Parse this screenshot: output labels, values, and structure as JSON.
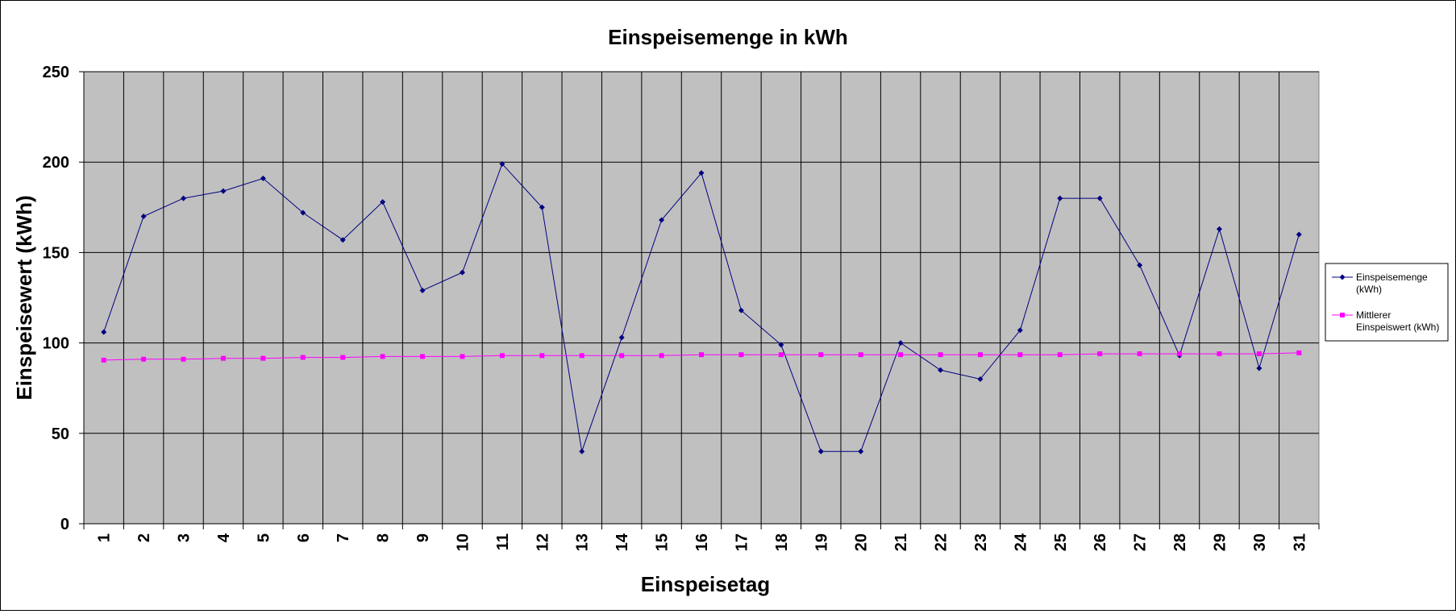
{
  "chart_data": {
    "type": "line",
    "title": "Einspeisemenge in kWh",
    "xlabel": "Einspeisetag",
    "ylabel": "Einspeisewert  (kWh)",
    "ylim": [
      0,
      250
    ],
    "yticks": [
      0,
      50,
      100,
      150,
      200,
      250
    ],
    "grid": true,
    "legend_position": "right",
    "plot_background": "#c0c0c0",
    "categories": [
      "1",
      "2",
      "3",
      "4",
      "5",
      "6",
      "7",
      "8",
      "9",
      "10",
      "11",
      "12",
      "13",
      "14",
      "15",
      "16",
      "17",
      "18",
      "19",
      "20",
      "21",
      "22",
      "23",
      "24",
      "25",
      "26",
      "27",
      "28",
      "29",
      "30",
      "31"
    ],
    "series": [
      {
        "name": "Einspeisemenge (kWh)",
        "legend_lines": [
          "Einspeisemenge",
          "(kWh)"
        ],
        "color": "#000080",
        "marker": "diamond",
        "values": [
          106,
          170,
          180,
          184,
          191,
          172,
          157,
          178,
          129,
          139,
          199,
          175,
          40,
          103,
          168,
          194,
          118,
          99,
          40,
          40,
          100,
          85,
          80,
          107,
          180,
          180,
          143,
          93,
          163,
          86,
          160
        ]
      },
      {
        "name": "Mittlerer Einspeiswert (kWh)",
        "legend_lines": [
          "Mittlerer",
          "Einspeiswert (kWh)"
        ],
        "color": "#ff00ff",
        "marker": "square",
        "values": [
          90.5,
          91,
          91,
          91.5,
          91.5,
          92,
          92,
          92.5,
          92.5,
          92.5,
          93,
          93,
          93,
          93,
          93,
          93.5,
          93.5,
          93.5,
          93.5,
          93.5,
          93.5,
          93.5,
          93.5,
          93.5,
          93.5,
          94,
          94,
          94,
          94,
          94,
          94.5
        ]
      }
    ]
  }
}
